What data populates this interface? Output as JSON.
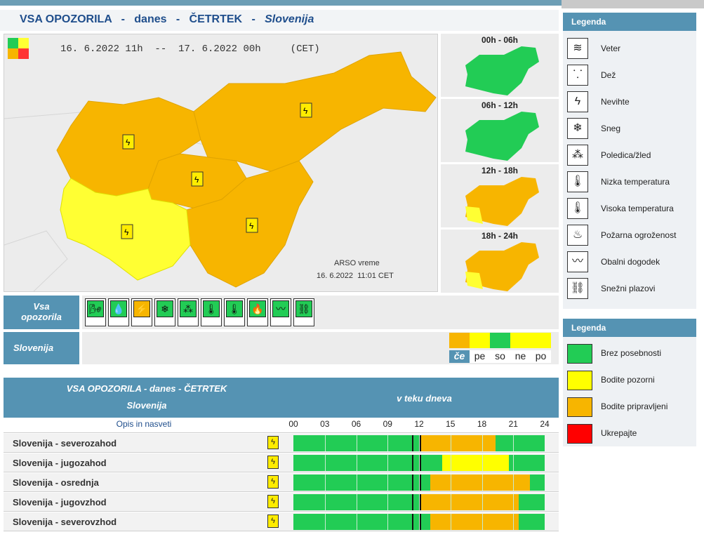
{
  "title": {
    "prefix": "VSA OPOZORILA",
    "sep": "-",
    "day_word": "danes",
    "weekday": "ČETRTEK",
    "region": "Slovenija"
  },
  "map": {
    "period": "16. 6.2022 11h  --  17. 6.2022 00h",
    "timezone": "(CET)",
    "credit": "ARSO vreme",
    "issued": "16. 6.2022  11:01 CET"
  },
  "periods": [
    {
      "label": "00h - 06h"
    },
    {
      "label": "06h - 12h"
    },
    {
      "label": "12h - 18h"
    },
    {
      "label": "18h - 24h"
    }
  ],
  "icon_bar": {
    "label": "Vsa opozorila"
  },
  "warning_icons": [
    {
      "name": "veter-icon",
      "glyph": "🌬",
      "selected": false
    },
    {
      "name": "dez-icon",
      "glyph": "💧",
      "selected": false
    },
    {
      "name": "nevihte-icon",
      "glyph": "⚡",
      "selected": true
    },
    {
      "name": "sneg-icon",
      "glyph": "❄",
      "selected": false
    },
    {
      "name": "poledica-icon",
      "glyph": "⁂",
      "selected": false
    },
    {
      "name": "nizka-temp-icon",
      "glyph": "🌡",
      "selected": false
    },
    {
      "name": "visoka-temp-icon",
      "glyph": "🌡",
      "selected": false
    },
    {
      "name": "pozar-icon",
      "glyph": "🔥",
      "selected": false
    },
    {
      "name": "obalni-icon",
      "glyph": "〰",
      "selected": false
    },
    {
      "name": "plazovi-icon",
      "glyph": "⛓",
      "selected": false
    }
  ],
  "region_bar": {
    "label": "Slovenija"
  },
  "days": [
    {
      "label": "če",
      "color": "#f7b500",
      "active": true
    },
    {
      "label": "pe",
      "color": "#ffff00",
      "active": false
    },
    {
      "label": "so",
      "color": "#22cc55",
      "active": false
    },
    {
      "label": "ne",
      "color": "#ffff00",
      "active": false
    },
    {
      "label": "po",
      "color": "#ffff00",
      "active": false
    }
  ],
  "table": {
    "title": "VSA OPOZORILA - danes - ČETRTEK",
    "subtitle": "Slovenija",
    "col_head": "v teku dneva",
    "opis": "Opis in nasveti",
    "hours": [
      "00",
      "03",
      "06",
      "09",
      "12",
      "15",
      "18",
      "21",
      "24"
    ],
    "now_hours": [
      11.3,
      12.1
    ],
    "rows": [
      {
        "name": "Slovenija - severozahod",
        "segments": [
          {
            "from": 12.1,
            "to": 19.3,
            "color": "#f7b500"
          }
        ]
      },
      {
        "name": "Slovenija - jugozahod",
        "segments": [
          {
            "from": 14.2,
            "to": 20.6,
            "color": "#ffff00"
          },
          {
            "from": 12.1,
            "to": 14.2,
            "color": "#22cc55"
          }
        ]
      },
      {
        "name": "Slovenija - osrednja",
        "segments": [
          {
            "from": 13.1,
            "to": 22.6,
            "color": "#f7b500"
          }
        ]
      },
      {
        "name": "Slovenija - jugovzhod",
        "segments": [
          {
            "from": 12.1,
            "to": 21.5,
            "color": "#f7b500"
          }
        ]
      },
      {
        "name": "Slovenija - severovzhod",
        "segments": [
          {
            "from": 13.1,
            "to": 21.5,
            "color": "#f7b500"
          }
        ]
      }
    ]
  },
  "legend1": {
    "title": "Legenda",
    "items": [
      {
        "label": "Veter",
        "glyph": "≋"
      },
      {
        "label": "Dež",
        "glyph": "⸪"
      },
      {
        "label": "Nevihte",
        "glyph": "ϟ"
      },
      {
        "label": "Sneg",
        "glyph": "❄"
      },
      {
        "label": "Poledica/žled",
        "glyph": "⁂"
      },
      {
        "label": "Nizka temperatura",
        "glyph": "🌡"
      },
      {
        "label": "Visoka temperatura",
        "glyph": "🌡"
      },
      {
        "label": "Požarna ogroženost",
        "glyph": "♨"
      },
      {
        "label": "Obalni dogodek",
        "glyph": "〰"
      },
      {
        "label": "Snežni plazovi",
        "glyph": "⛓"
      }
    ]
  },
  "legend2": {
    "title": "Legenda",
    "items": [
      {
        "label": "Brez posebnosti",
        "color": "#22cc55"
      },
      {
        "label": "Bodite pozorni",
        "color": "#ffff00"
      },
      {
        "label": "Bodite pripravljeni",
        "color": "#f7b500"
      },
      {
        "label": "Ukrepajte",
        "color": "#ff0000"
      }
    ]
  }
}
